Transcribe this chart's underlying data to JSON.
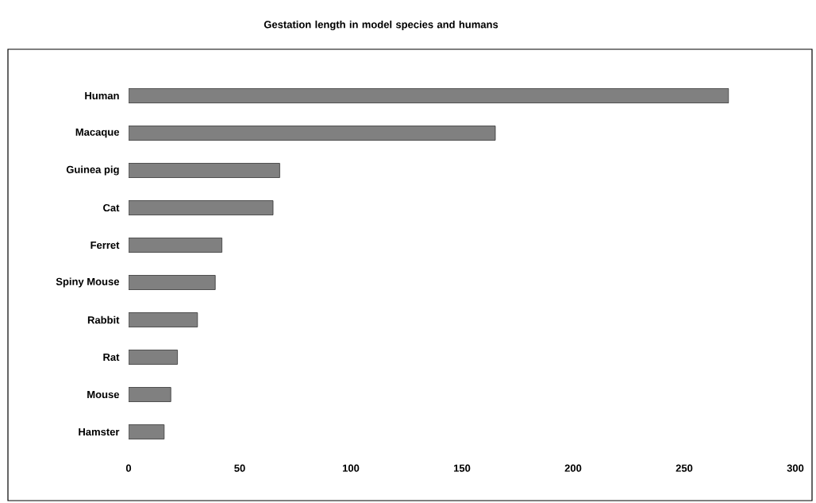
{
  "chart_data": {
    "type": "bar",
    "orientation": "horizontal",
    "title": "Gestation length in model species and humans",
    "categories": [
      "Human",
      "Macaque",
      "Guinea pig",
      "Cat",
      "Ferret",
      "Spiny Mouse",
      "Rabbit",
      "Rat",
      "Mouse",
      "Hamster"
    ],
    "values": [
      270,
      165,
      68,
      65,
      42,
      39,
      31,
      22,
      19,
      16
    ],
    "color": "#808080",
    "xlim": [
      0,
      300
    ],
    "xticks": [
      0,
      50,
      100,
      150,
      200,
      250,
      300
    ],
    "grid": false
  }
}
